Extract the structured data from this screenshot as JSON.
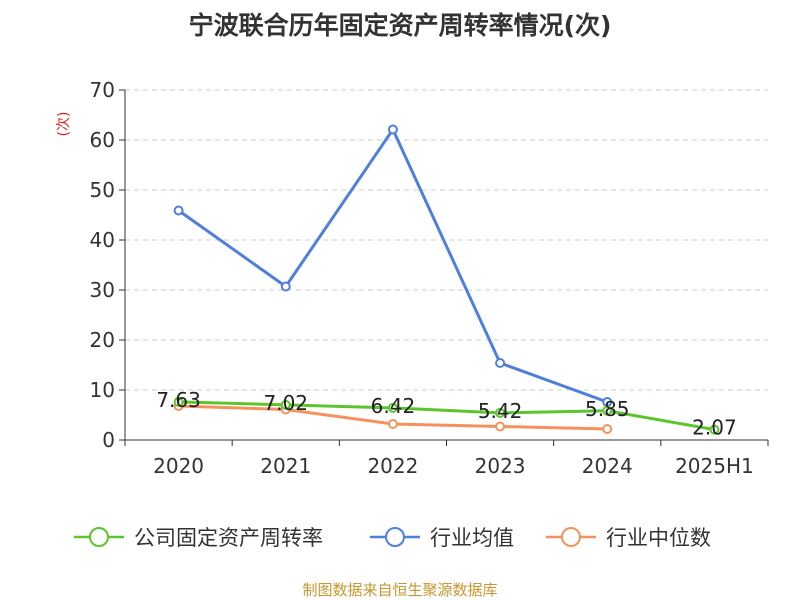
{
  "chart_data": {
    "type": "line",
    "title": "宁波联合历年固定资产周转率情况(次)",
    "ylabel": "(次)",
    "xlabel": "",
    "categories": [
      "2020",
      "2021",
      "2022",
      "2023",
      "2024",
      "2025H1"
    ],
    "yticks": [
      "0",
      "10",
      "20",
      "30",
      "40",
      "50",
      "60",
      "70"
    ],
    "ylim": [
      0,
      70
    ],
    "grid": true,
    "legend_position": "bottom",
    "series": [
      {
        "name": "公司固定资产周转率",
        "color": "#5cc42c",
        "values": [
          7.63,
          7.02,
          6.42,
          5.42,
          5.85,
          2.07
        ],
        "labels": [
          "7.63",
          "7.02",
          "6.42",
          "5.42",
          "5.85",
          "2.07"
        ]
      },
      {
        "name": "行业均值",
        "color": "#4f7fdc",
        "values": [
          45.9,
          30.7,
          62.1,
          15.4,
          7.6,
          null
        ]
      },
      {
        "name": "行业中位数",
        "color": "#f5915c",
        "values": [
          6.8,
          6.1,
          3.2,
          2.7,
          2.2,
          null
        ]
      }
    ]
  },
  "source": "制图数据来自恒生聚源数据库"
}
